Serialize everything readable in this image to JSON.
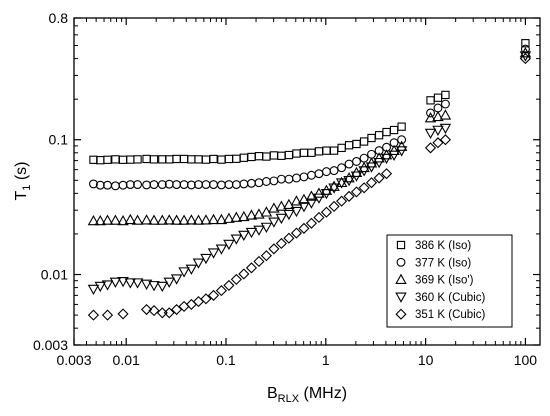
{
  "chart_data": {
    "type": "scatter",
    "title": "",
    "xlabel": {
      "main": "B",
      "sub": "RLX",
      "unit": " (MHz)"
    },
    "ylabel": {
      "main": "T",
      "sub": "1",
      "unit": " (s)"
    },
    "xscale": "log",
    "yscale": "log",
    "xlim": [
      0.003,
      140
    ],
    "ylim": [
      0.003,
      0.8
    ],
    "xticks": [
      {
        "value": 0.003,
        "label": "0.003"
      },
      {
        "value": 0.01,
        "label": "0.01"
      },
      {
        "value": 0.1,
        "label": "0.1"
      },
      {
        "value": 1,
        "label": "1"
      },
      {
        "value": 10,
        "label": "10"
      },
      {
        "value": 100,
        "label": "100"
      }
    ],
    "yticks": [
      {
        "value": 0.003,
        "label": "0.003"
      },
      {
        "value": 0.01,
        "label": "0.01"
      },
      {
        "value": 0.1,
        "label": "0.1"
      },
      {
        "value": 0.8,
        "label": "0.8"
      }
    ],
    "grid": false,
    "legend_position": "lower-right",
    "series": [
      {
        "name": "386 K (Iso)",
        "marker": "square",
        "points": [
          [
            0.0047,
            0.071
          ],
          [
            0.0055,
            0.0705
          ],
          [
            0.0065,
            0.071
          ],
          [
            0.0078,
            0.0715
          ],
          [
            0.0093,
            0.071
          ],
          [
            0.011,
            0.0712
          ],
          [
            0.013,
            0.0715
          ],
          [
            0.016,
            0.072
          ],
          [
            0.019,
            0.0715
          ],
          [
            0.023,
            0.0715
          ],
          [
            0.027,
            0.0715
          ],
          [
            0.032,
            0.072
          ],
          [
            0.038,
            0.072
          ],
          [
            0.045,
            0.0715
          ],
          [
            0.053,
            0.0715
          ],
          [
            0.063,
            0.0712
          ],
          [
            0.075,
            0.072
          ],
          [
            0.09,
            0.0712
          ],
          [
            0.107,
            0.072
          ],
          [
            0.127,
            0.0722
          ],
          [
            0.151,
            0.0735
          ],
          [
            0.18,
            0.0745
          ],
          [
            0.214,
            0.0755
          ],
          [
            0.254,
            0.075
          ],
          [
            0.302,
            0.0765
          ],
          [
            0.359,
            0.076
          ],
          [
            0.427,
            0.077
          ],
          [
            0.508,
            0.079
          ],
          [
            0.604,
            0.08
          ],
          [
            0.718,
            0.08
          ],
          [
            0.854,
            0.082
          ],
          [
            1.015,
            0.083
          ],
          [
            1.21,
            0.083
          ],
          [
            1.44,
            0.087
          ],
          [
            1.71,
            0.091
          ],
          [
            2.03,
            0.093
          ],
          [
            2.42,
            0.097
          ],
          [
            2.87,
            0.103
          ],
          [
            3.42,
            0.108
          ],
          [
            4.06,
            0.114
          ],
          [
            4.83,
            0.118
          ],
          [
            5.75,
            0.125
          ],
          [
            11.2,
            0.196
          ],
          [
            13.3,
            0.205
          ],
          [
            15.8,
            0.215
          ],
          [
            100,
            0.52
          ]
        ]
      },
      {
        "name": "377 K (Iso)",
        "marker": "circle",
        "points": [
          [
            0.0047,
            0.047
          ],
          [
            0.0055,
            0.046
          ],
          [
            0.0065,
            0.046
          ],
          [
            0.0078,
            0.0455
          ],
          [
            0.0093,
            0.046
          ],
          [
            0.011,
            0.0465
          ],
          [
            0.013,
            0.0465
          ],
          [
            0.016,
            0.0462
          ],
          [
            0.019,
            0.0465
          ],
          [
            0.023,
            0.0465
          ],
          [
            0.027,
            0.0468
          ],
          [
            0.032,
            0.0465
          ],
          [
            0.038,
            0.0465
          ],
          [
            0.045,
            0.0462
          ],
          [
            0.053,
            0.0465
          ],
          [
            0.063,
            0.0465
          ],
          [
            0.075,
            0.0465
          ],
          [
            0.09,
            0.0462
          ],
          [
            0.107,
            0.0465
          ],
          [
            0.127,
            0.0465
          ],
          [
            0.151,
            0.047
          ],
          [
            0.18,
            0.0475
          ],
          [
            0.214,
            0.048
          ],
          [
            0.254,
            0.049
          ],
          [
            0.302,
            0.0495
          ],
          [
            0.359,
            0.051
          ],
          [
            0.427,
            0.051
          ],
          [
            0.508,
            0.052
          ],
          [
            0.604,
            0.053
          ],
          [
            0.718,
            0.0545
          ],
          [
            0.854,
            0.056
          ],
          [
            1.015,
            0.058
          ],
          [
            1.21,
            0.059
          ],
          [
            1.44,
            0.062
          ],
          [
            1.71,
            0.066
          ],
          [
            2.03,
            0.069
          ],
          [
            2.42,
            0.073
          ],
          [
            2.87,
            0.078
          ],
          [
            3.42,
            0.083
          ],
          [
            4.06,
            0.088
          ],
          [
            4.83,
            0.095
          ],
          [
            5.75,
            0.1
          ],
          [
            11.2,
            0.158
          ],
          [
            13.3,
            0.172
          ],
          [
            15.8,
            0.184
          ],
          [
            100,
            0.47
          ]
        ]
      },
      {
        "name": "369 K (Iso')",
        "marker": "triangle-up",
        "points": [
          [
            0.0047,
            0.025
          ],
          [
            0.0055,
            0.025
          ],
          [
            0.0065,
            0.0252
          ],
          [
            0.0078,
            0.0252
          ],
          [
            0.0093,
            0.025
          ],
          [
            0.011,
            0.0255
          ],
          [
            0.013,
            0.0252
          ],
          [
            0.016,
            0.0253
          ],
          [
            0.019,
            0.0252
          ],
          [
            0.023,
            0.0252
          ],
          [
            0.027,
            0.0253
          ],
          [
            0.032,
            0.0252
          ],
          [
            0.038,
            0.0252
          ],
          [
            0.045,
            0.0253
          ],
          [
            0.053,
            0.0252
          ],
          [
            0.063,
            0.0253
          ],
          [
            0.075,
            0.0255
          ],
          [
            0.09,
            0.0255
          ],
          [
            0.107,
            0.026
          ],
          [
            0.127,
            0.0265
          ],
          [
            0.151,
            0.0268
          ],
          [
            0.18,
            0.0275
          ],
          [
            0.214,
            0.028
          ],
          [
            0.254,
            0.029
          ],
          [
            0.302,
            0.031
          ],
          [
            0.359,
            0.032
          ],
          [
            0.427,
            0.033
          ],
          [
            0.508,
            0.035
          ],
          [
            0.604,
            0.036
          ],
          [
            0.718,
            0.038
          ],
          [
            0.854,
            0.04
          ],
          [
            1.015,
            0.042
          ],
          [
            1.21,
            0.045
          ],
          [
            1.44,
            0.048
          ],
          [
            1.71,
            0.052
          ],
          [
            2.03,
            0.057
          ],
          [
            2.42,
            0.062
          ],
          [
            2.87,
            0.067
          ],
          [
            3.42,
            0.073
          ],
          [
            4.06,
            0.077
          ],
          [
            4.83,
            0.083
          ],
          [
            5.75,
            0.089
          ],
          [
            11.2,
            0.145
          ],
          [
            13.3,
            0.148
          ],
          [
            15.8,
            0.152
          ],
          [
            100,
            0.44
          ]
        ]
      },
      {
        "name": "360 K (Cubic)",
        "marker": "triangle-down",
        "points": [
          [
            0.0047,
            0.0078
          ],
          [
            0.0055,
            0.0082
          ],
          [
            0.0065,
            0.0084
          ],
          [
            0.0078,
            0.0088
          ],
          [
            0.0093,
            0.0089
          ],
          [
            0.011,
            0.0087
          ],
          [
            0.013,
            0.0087
          ],
          [
            0.016,
            0.0085
          ],
          [
            0.019,
            0.0083
          ],
          [
            0.023,
            0.0082
          ],
          [
            0.027,
            0.0088
          ],
          [
            0.032,
            0.0093
          ],
          [
            0.038,
            0.0105
          ],
          [
            0.045,
            0.011
          ],
          [
            0.053,
            0.0122
          ],
          [
            0.063,
            0.0132
          ],
          [
            0.075,
            0.0145
          ],
          [
            0.09,
            0.0155
          ],
          [
            0.107,
            0.0168
          ],
          [
            0.127,
            0.0184
          ],
          [
            0.151,
            0.0196
          ],
          [
            0.18,
            0.0206
          ],
          [
            0.214,
            0.0214
          ],
          [
            0.254,
            0.0225
          ],
          [
            0.302,
            0.0246
          ],
          [
            0.359,
            0.0262
          ],
          [
            0.427,
            0.028
          ],
          [
            0.508,
            0.0295
          ],
          [
            0.604,
            0.032
          ],
          [
            0.718,
            0.034
          ],
          [
            0.854,
            0.037
          ],
          [
            1.015,
            0.04
          ],
          [
            1.21,
            0.044
          ],
          [
            1.44,
            0.048
          ],
          [
            1.71,
            0.05
          ],
          [
            2.03,
            0.054
          ],
          [
            2.42,
            0.059
          ],
          [
            2.87,
            0.063
          ],
          [
            3.42,
            0.068
          ],
          [
            4.06,
            0.073
          ],
          [
            4.83,
            0.077
          ],
          [
            5.75,
            0.083
          ],
          [
            11.2,
            0.112
          ],
          [
            13.3,
            0.118
          ],
          [
            15.8,
            0.122
          ],
          [
            100,
            0.42
          ]
        ]
      },
      {
        "name": "351 K (Cubic)",
        "marker": "diamond",
        "points": [
          [
            0.0047,
            0.005
          ],
          [
            0.0065,
            0.005
          ],
          [
            0.0093,
            0.0051
          ],
          [
            0.016,
            0.0055
          ],
          [
            0.019,
            0.0054
          ],
          [
            0.023,
            0.0052
          ],
          [
            0.027,
            0.0052
          ],
          [
            0.032,
            0.0055
          ],
          [
            0.038,
            0.0058
          ],
          [
            0.045,
            0.006
          ],
          [
            0.053,
            0.0063
          ],
          [
            0.063,
            0.0066
          ],
          [
            0.075,
            0.007
          ],
          [
            0.09,
            0.0076
          ],
          [
            0.107,
            0.0083
          ],
          [
            0.127,
            0.0092
          ],
          [
            0.151,
            0.0101
          ],
          [
            0.18,
            0.0112
          ],
          [
            0.214,
            0.0125
          ],
          [
            0.254,
            0.0138
          ],
          [
            0.302,
            0.0155
          ],
          [
            0.359,
            0.017
          ],
          [
            0.427,
            0.0186
          ],
          [
            0.508,
            0.0203
          ],
          [
            0.604,
            0.022
          ],
          [
            0.718,
            0.024
          ],
          [
            0.854,
            0.0265
          ],
          [
            1.015,
            0.029
          ],
          [
            1.21,
            0.032
          ],
          [
            1.44,
            0.035
          ],
          [
            1.71,
            0.038
          ],
          [
            2.03,
            0.041
          ],
          [
            2.42,
            0.044
          ],
          [
            2.87,
            0.048
          ],
          [
            3.42,
            0.052
          ],
          [
            4.06,
            0.056
          ],
          [
            11.2,
            0.087
          ],
          [
            13.3,
            0.095
          ],
          [
            15.8,
            0.1
          ],
          [
            100,
            0.4
          ]
        ]
      }
    ]
  }
}
